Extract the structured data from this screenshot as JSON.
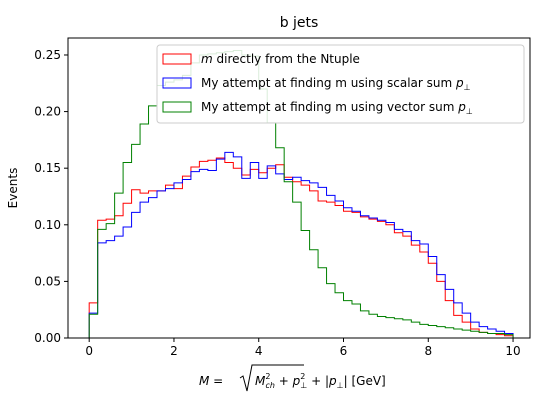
{
  "chart_data": {
    "type": "histogram",
    "title": "b jets",
    "ylabel": "Events",
    "xlabel": "M = √(M²ch + p²⊥) + |p⊥| [GeV]",
    "xlim": [
      -0.5,
      10.4
    ],
    "ylim": [
      0,
      0.265
    ],
    "xticks": [
      0,
      2,
      4,
      6,
      8,
      10
    ],
    "xtick_labels": [
      "0",
      "2",
      "4",
      "6",
      "8",
      "10"
    ],
    "yticks": [
      0.0,
      0.05,
      0.1,
      0.15,
      0.2,
      0.25
    ],
    "ytick_labels": [
      "0.00",
      "0.05",
      "0.10",
      "0.15",
      "0.20",
      "0.25"
    ],
    "grid": false,
    "legend_position": "top-right",
    "bin_edges": [
      0,
      0.2,
      0.4,
      0.6,
      0.8,
      1.0,
      1.2,
      1.4,
      1.6,
      1.8,
      2.0,
      2.2,
      2.4,
      2.6,
      2.8,
      3.0,
      3.2,
      3.4,
      3.6,
      3.8,
      4.0,
      4.2,
      4.4,
      4.6,
      4.8,
      5.0,
      5.2,
      5.4,
      5.6,
      5.8,
      6.0,
      6.2,
      6.4,
      6.6,
      6.8,
      7.0,
      7.2,
      7.4,
      7.6,
      7.8,
      8.0,
      8.2,
      8.4,
      8.6,
      8.8,
      9.0,
      9.2,
      9.4,
      9.6,
      9.8,
      10.0
    ],
    "series": [
      {
        "name": "m directly from the Ntuple",
        "legend_label": "m directly from the Ntuple",
        "color": "#ff0000",
        "values": [
          0.031,
          0.104,
          0.105,
          0.108,
          0.119,
          0.131,
          0.128,
          0.13,
          0.13,
          0.135,
          0.132,
          0.143,
          0.151,
          0.156,
          0.157,
          0.159,
          0.155,
          0.15,
          0.144,
          0.149,
          0.146,
          0.15,
          0.153,
          0.142,
          0.138,
          0.135,
          0.13,
          0.121,
          0.12,
          0.117,
          0.112,
          0.111,
          0.107,
          0.105,
          0.103,
          0.1,
          0.093,
          0.09,
          0.082,
          0.076,
          0.066,
          0.05,
          0.033,
          0.02,
          0.014,
          0.008,
          0.005,
          0.004,
          0.003,
          0.002
        ]
      },
      {
        "name": "My attempt at finding m using scalar sum p⊥",
        "legend_label": "My attempt at finding m using scalar sum p⊥",
        "color": "#0000ff",
        "values": [
          0.022,
          0.084,
          0.086,
          0.09,
          0.098,
          0.111,
          0.12,
          0.124,
          0.13,
          0.132,
          0.137,
          0.14,
          0.147,
          0.149,
          0.148,
          0.158,
          0.164,
          0.16,
          0.141,
          0.155,
          0.141,
          0.152,
          0.145,
          0.14,
          0.142,
          0.139,
          0.137,
          0.133,
          0.126,
          0.121,
          0.115,
          0.112,
          0.108,
          0.106,
          0.104,
          0.102,
          0.096,
          0.094,
          0.086,
          0.083,
          0.072,
          0.056,
          0.043,
          0.031,
          0.022,
          0.014,
          0.01,
          0.008,
          0.006,
          0.004
        ]
      },
      {
        "name": "My attempt at finding m using vector sum p⊥",
        "legend_label": "My attempt at finding m using vector sum p⊥",
        "color": "#008000",
        "values": [
          0.021,
          0.096,
          0.101,
          0.128,
          0.155,
          0.171,
          0.189,
          0.205,
          0.223,
          0.226,
          0.228,
          0.232,
          0.243,
          0.25,
          0.251,
          0.252,
          0.253,
          0.254,
          0.25,
          0.249,
          0.22,
          0.19,
          0.168,
          0.138,
          0.12,
          0.095,
          0.078,
          0.062,
          0.048,
          0.04,
          0.033,
          0.03,
          0.024,
          0.021,
          0.019,
          0.018,
          0.017,
          0.016,
          0.014,
          0.012,
          0.011,
          0.01,
          0.009,
          0.008,
          0.007,
          0.006,
          0.005,
          0.004,
          0.004,
          0.003
        ]
      }
    ]
  }
}
